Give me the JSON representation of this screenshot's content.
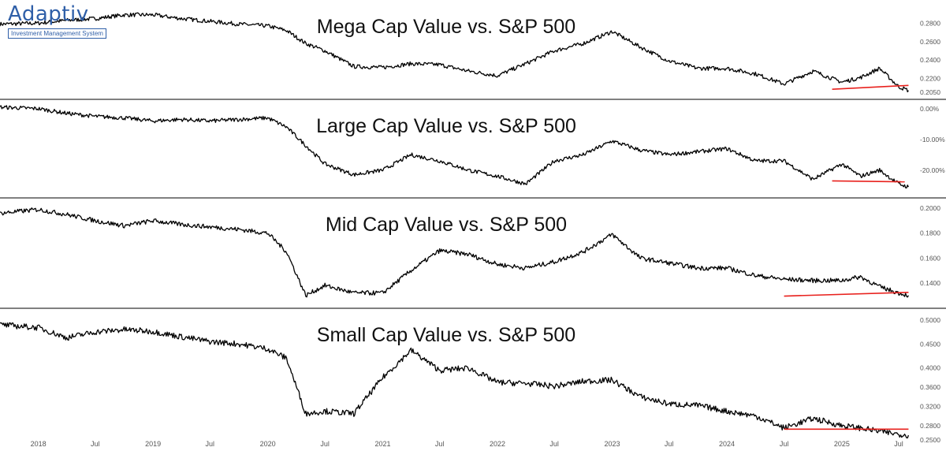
{
  "logo": {
    "name": "Adaptiv",
    "tagline": "Investment Management System"
  },
  "colors": {
    "line": "#000000",
    "trend": "#e8211d",
    "axis_text": "#555555",
    "divider": "#000000"
  },
  "x_axis": {
    "labels": [
      "2018",
      "Jul",
      "2019",
      "Jul",
      "2020",
      "Jul",
      "2021",
      "Jul",
      "2022",
      "Jul",
      "2023",
      "Jul",
      "2024",
      "Jul",
      "2025",
      "Jul"
    ],
    "dates": [
      "2018-01-01",
      "2018-07-01",
      "2019-01-01",
      "2019-07-01",
      "2020-01-01",
      "2020-07-01",
      "2021-01-01",
      "2021-07-01",
      "2022-01-01",
      "2022-07-01",
      "2023-01-01",
      "2023-07-01",
      "2024-01-01",
      "2024-07-01",
      "2025-01-01",
      "2025-07-01"
    ]
  },
  "chart_data": [
    {
      "type": "line",
      "title": "Mega Cap Value vs. S&P 500",
      "y_ticks": [
        "0.2800",
        "0.2600",
        "0.2400",
        "0.2200",
        "0.2050"
      ],
      "y_tick_values": [
        0.28,
        0.26,
        0.24,
        0.22,
        0.205
      ],
      "ylim": [
        0.2025,
        0.3
      ],
      "series": [
        {
          "x": [
            "2017-09-01",
            "2018-01-01",
            "2018-04-01",
            "2018-07-01",
            "2018-10-01",
            "2019-01-01",
            "2019-04-01",
            "2019-07-01",
            "2019-10-01",
            "2020-01-01",
            "2020-03-01",
            "2020-05-01",
            "2020-07-01",
            "2020-10-01",
            "2021-01-01",
            "2021-04-01",
            "2021-07-01",
            "2021-10-01",
            "2022-01-01",
            "2022-04-01",
            "2022-07-01",
            "2022-10-01",
            "2023-01-01",
            "2023-04-01",
            "2023-07-01",
            "2023-10-01",
            "2024-01-01",
            "2024-04-01",
            "2024-07-01",
            "2024-10-01",
            "2025-01-01",
            "2025-03-01",
            "2025-05-01",
            "2025-07-01",
            "2025-08-01"
          ],
          "y": [
            0.279,
            0.28,
            0.283,
            0.285,
            0.289,
            0.289,
            0.285,
            0.282,
            0.279,
            0.277,
            0.272,
            0.258,
            0.25,
            0.233,
            0.232,
            0.236,
            0.235,
            0.228,
            0.223,
            0.236,
            0.25,
            0.258,
            0.271,
            0.254,
            0.239,
            0.231,
            0.231,
            0.225,
            0.214,
            0.228,
            0.216,
            0.221,
            0.231,
            0.211,
            0.207
          ]
        }
      ],
      "trend_line": {
        "x": [
          "2024-12-01",
          "2025-08-01"
        ],
        "y": [
          0.2083,
          0.2125
        ]
      }
    },
    {
      "type": "line",
      "title": "Large Cap Value vs. S&P 500",
      "y_ticks": [
        "0.00%",
        "-10.00%",
        "-20.00%"
      ],
      "y_tick_values": [
        0,
        -10,
        -20
      ],
      "ylim": [
        -27.5,
        1.5
      ],
      "series": [
        {
          "x": [
            "2017-09-01",
            "2018-01-01",
            "2018-04-01",
            "2018-07-01",
            "2018-10-01",
            "2019-01-01",
            "2019-04-01",
            "2019-07-01",
            "2019-10-01",
            "2020-01-01",
            "2020-03-01",
            "2020-05-01",
            "2020-07-01",
            "2020-10-01",
            "2021-01-01",
            "2021-04-01",
            "2021-07-01",
            "2021-10-01",
            "2022-01-01",
            "2022-04-01",
            "2022-07-01",
            "2022-10-01",
            "2023-01-01",
            "2023-04-01",
            "2023-07-01",
            "2023-10-01",
            "2024-01-01",
            "2024-04-01",
            "2024-07-01",
            "2024-10-01",
            "2025-01-01",
            "2025-03-01",
            "2025-05-01",
            "2025-07-01",
            "2025-08-01"
          ],
          "y": [
            0.5,
            0.0,
            -1.5,
            -2.5,
            -3.0,
            -4.0,
            -3.5,
            -4.0,
            -3.5,
            -3.0,
            -6.0,
            -12.0,
            -18.0,
            -21.5,
            -20.0,
            -15.0,
            -17.0,
            -20.0,
            -22.0,
            -24.5,
            -17.0,
            -15.0,
            -10.5,
            -13.5,
            -15.0,
            -14.0,
            -13.0,
            -17.0,
            -17.0,
            -23.0,
            -18.0,
            -22.0,
            -20.0,
            -24.5,
            -25.5
          ]
        }
      ],
      "trend_line": {
        "x": [
          "2024-12-01",
          "2025-07-20"
        ],
        "y": [
          -23.5,
          -23.8
        ]
      }
    },
    {
      "type": "line",
      "title": "Mid Cap Value vs. S&P 500",
      "y_ticks": [
        "0.2000",
        "0.1800",
        "0.1600",
        "0.1400"
      ],
      "y_tick_values": [
        0.2,
        0.18,
        0.16,
        0.14
      ],
      "ylim": [
        0.1235,
        0.2045
      ],
      "series": [
        {
          "x": [
            "2017-09-01",
            "2018-01-01",
            "2018-04-01",
            "2018-07-01",
            "2018-10-01",
            "2019-01-01",
            "2019-04-01",
            "2019-07-01",
            "2019-10-01",
            "2020-01-01",
            "2020-03-01",
            "2020-05-01",
            "2020-07-01",
            "2020-10-01",
            "2021-01-01",
            "2021-04-01",
            "2021-07-01",
            "2021-10-01",
            "2022-01-01",
            "2022-04-01",
            "2022-07-01",
            "2022-10-01",
            "2023-01-01",
            "2023-04-01",
            "2023-07-01",
            "2023-10-01",
            "2024-01-01",
            "2024-04-01",
            "2024-07-01",
            "2024-10-01",
            "2025-01-01",
            "2025-03-01",
            "2025-05-01",
            "2025-07-01",
            "2025-08-01"
          ],
          "y": [
            0.196,
            0.199,
            0.195,
            0.19,
            0.186,
            0.19,
            0.187,
            0.185,
            0.183,
            0.18,
            0.165,
            0.13,
            0.138,
            0.132,
            0.132,
            0.15,
            0.166,
            0.163,
            0.155,
            0.152,
            0.157,
            0.165,
            0.179,
            0.16,
            0.156,
            0.152,
            0.152,
            0.146,
            0.143,
            0.142,
            0.142,
            0.145,
            0.137,
            0.132,
            0.13
          ]
        }
      ],
      "trend_line": {
        "x": [
          "2024-07-01",
          "2025-08-01"
        ],
        "y": [
          0.1295,
          0.1325
        ]
      }
    },
    {
      "type": "line",
      "title": "Small Cap Value vs. S&P 500",
      "y_ticks": [
        "0.5000",
        "0.4500",
        "0.4000",
        "0.3600",
        "0.3200",
        "0.2800",
        "0.2500"
      ],
      "y_tick_values": [
        0.5,
        0.45,
        0.4,
        0.36,
        0.32,
        0.28,
        0.25
      ],
      "ylim": [
        0.2435,
        0.5145
      ],
      "series": [
        {
          "x": [
            "2017-09-01",
            "2018-01-01",
            "2018-04-01",
            "2018-07-01",
            "2018-10-01",
            "2019-01-01",
            "2019-04-01",
            "2019-07-01",
            "2019-10-01",
            "2020-01-01",
            "2020-03-01",
            "2020-05-01",
            "2020-07-01",
            "2020-10-01",
            "2021-01-01",
            "2021-04-01",
            "2021-07-01",
            "2021-10-01",
            "2022-01-01",
            "2022-04-01",
            "2022-07-01",
            "2022-10-01",
            "2023-01-01",
            "2023-04-01",
            "2023-07-01",
            "2023-10-01",
            "2024-01-01",
            "2024-04-01",
            "2024-07-01",
            "2024-10-01",
            "2025-01-01",
            "2025-03-01",
            "2025-05-01",
            "2025-07-01",
            "2025-08-01"
          ],
          "y": [
            0.49,
            0.484,
            0.463,
            0.475,
            0.48,
            0.476,
            0.465,
            0.455,
            0.45,
            0.44,
            0.42,
            0.305,
            0.31,
            0.305,
            0.38,
            0.437,
            0.395,
            0.4,
            0.37,
            0.368,
            0.362,
            0.372,
            0.375,
            0.34,
            0.325,
            0.322,
            0.31,
            0.3,
            0.275,
            0.295,
            0.28,
            0.275,
            0.268,
            0.262,
            0.26
          ]
        }
      ],
      "trend_line": {
        "x": [
          "2024-07-01",
          "2025-08-01"
        ],
        "y": [
          0.2725,
          0.2725
        ]
      }
    }
  ]
}
